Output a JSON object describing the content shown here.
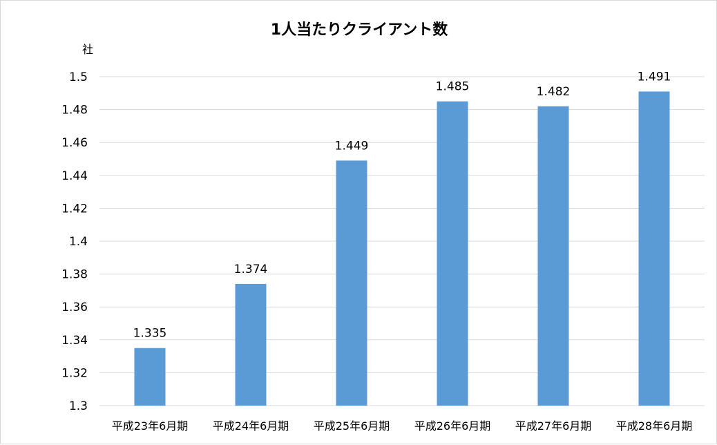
{
  "chart_data": {
    "type": "bar",
    "title": "1人当たりクライアント数",
    "ylabel": "社",
    "xlabel": "",
    "categories": [
      "平成23年6月期",
      "平成24年6月期",
      "平成25年6月期",
      "平成26年6月期",
      "平成27年6月期",
      "平成28年6月期"
    ],
    "values": [
      1.335,
      1.374,
      1.449,
      1.485,
      1.482,
      1.491
    ],
    "value_labels": [
      "1.335",
      "1.374",
      "1.449",
      "1.485",
      "1.482",
      "1.491"
    ],
    "ylim": [
      1.3,
      1.5
    ],
    "y_ticks": [
      1.3,
      1.32,
      1.34,
      1.36,
      1.38,
      1.4,
      1.42,
      1.44,
      1.46,
      1.48,
      1.5
    ],
    "y_tick_labels": [
      "1.3",
      "1.32",
      "1.34",
      "1.36",
      "1.38",
      "1.4",
      "1.42",
      "1.44",
      "1.46",
      "1.48",
      "1.5"
    ],
    "grid": true,
    "legend": "none",
    "colors": {
      "bar": "#5b9bd5",
      "grid": "#d9d9d9",
      "text": "#000000"
    }
  }
}
